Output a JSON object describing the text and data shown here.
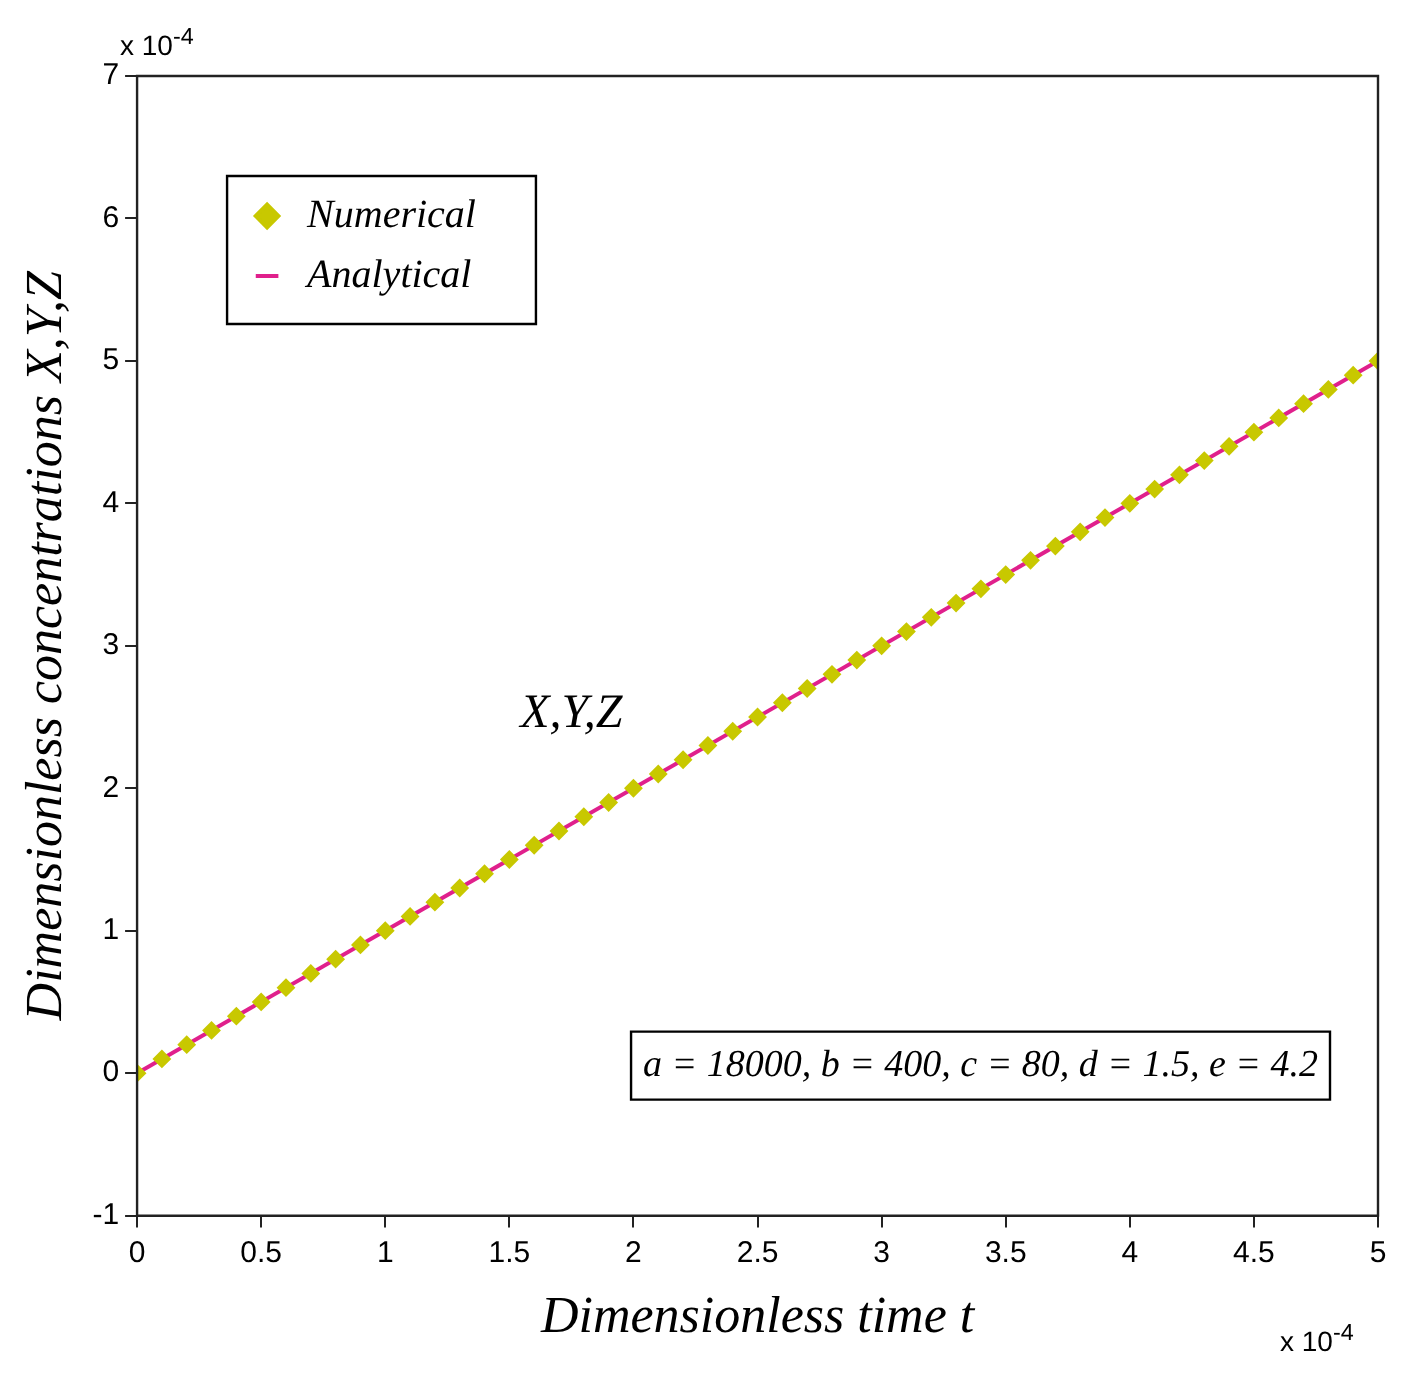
{
  "chart_data": {
    "type": "line",
    "xlabel": "Dimensionless time t",
    "ylabel": "Dimensionless concentrations X,Y,Z",
    "xlim": [
      0,
      5
    ],
    "xticks": [
      0,
      0.5,
      1,
      1.5,
      2,
      2.5,
      3,
      3.5,
      4,
      4.5,
      5
    ],
    "ylim": [
      -1,
      7
    ],
    "yticks": [
      -1,
      0,
      1,
      2,
      3,
      4,
      5,
      6,
      7
    ],
    "grid": false,
    "legend": "top left",
    "series": [
      {
        "name": "Numerical",
        "type": "scatter",
        "marker": "diamond",
        "color": "#c8c800",
        "x": [
          0,
          0.1,
          0.2,
          0.3,
          0.4,
          0.5,
          0.6,
          0.7,
          0.8,
          0.9,
          1,
          1.1,
          1.2,
          1.3,
          1.4,
          1.5,
          1.6,
          1.7,
          1.8,
          1.9,
          2,
          2.1,
          2.2,
          2.3,
          2.4,
          2.5,
          2.6,
          2.7,
          2.8,
          2.9,
          3,
          3.1,
          3.2,
          3.3,
          3.4,
          3.5,
          3.6,
          3.7,
          3.8,
          3.9,
          4,
          4.1,
          4.2,
          4.3,
          4.4,
          4.5,
          4.6,
          4.7,
          4.8,
          4.9,
          5
        ],
        "values": [
          0,
          0.1,
          0.2,
          0.3,
          0.4,
          0.5,
          0.6,
          0.7,
          0.8,
          0.9,
          1,
          1.1,
          1.2,
          1.3,
          1.4,
          1.5,
          1.6,
          1.7,
          1.8,
          1.9,
          2,
          2.1,
          2.2,
          2.3,
          2.4,
          2.5,
          2.6,
          2.7,
          2.8,
          2.9,
          3,
          3.1,
          3.2,
          3.3,
          3.4,
          3.5,
          3.6,
          3.7,
          3.8,
          3.9,
          4,
          4.1,
          4.2,
          4.3,
          4.4,
          4.5,
          4.6,
          4.7,
          4.8,
          4.9,
          5
        ]
      },
      {
        "name": "Analytical",
        "type": "line",
        "line_style": "solid",
        "color": "#e0208c",
        "x": [
          0,
          5
        ],
        "values": [
          0,
          5
        ]
      }
    ],
    "annotations": [
      "x 10$^{-4}$",
      "x 10$^{-4}$",
      "X,Y,Z",
      "a = 18000, b = 400, c = 80, d = 1.5, e = 4.2"
    ]
  }
}
